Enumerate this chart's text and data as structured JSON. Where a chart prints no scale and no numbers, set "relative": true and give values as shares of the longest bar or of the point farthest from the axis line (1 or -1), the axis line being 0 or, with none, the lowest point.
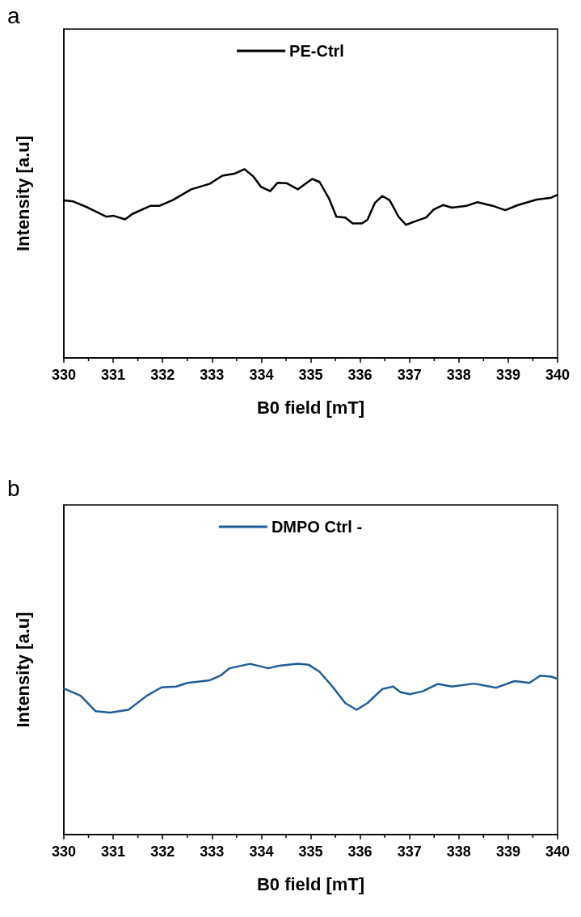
{
  "chart_data": [
    {
      "type": "line",
      "title": "a",
      "xlabel": "B0 field [mT]",
      "ylabel": "Intensity [a.u]",
      "relative": true,
      "xlim": [
        330,
        340
      ],
      "xticks": [
        330,
        331,
        332,
        333,
        334,
        335,
        336,
        337,
        338,
        339,
        340
      ],
      "tick_labels": "x",
      "legend": "top",
      "grid": false,
      "marker": "none",
      "line_style": "solid",
      "x": [
        330.0,
        330.19,
        330.49,
        330.86,
        331.01,
        331.24,
        331.39,
        331.76,
        331.94,
        332.2,
        332.58,
        332.95,
        333.21,
        333.47,
        333.66,
        333.84,
        333.99,
        334.18,
        334.33,
        334.51,
        334.74,
        335.03,
        335.18,
        335.37,
        335.52,
        335.7,
        335.85,
        336.04,
        336.15,
        336.3,
        336.45,
        336.6,
        336.78,
        336.93,
        337.12,
        337.34,
        337.49,
        337.68,
        337.86,
        338.16,
        338.38,
        338.68,
        338.94,
        339.2,
        339.58,
        339.87,
        340.0
      ],
      "series": [
        {
          "name": "PE-Ctrl",
          "color": "#000000",
          "values": [
            0.835,
            0.829,
            0.796,
            0.748,
            0.753,
            0.734,
            0.763,
            0.806,
            0.806,
            0.835,
            0.893,
            0.922,
            0.965,
            0.977,
            1.0,
            0.961,
            0.907,
            0.883,
            0.928,
            0.926,
            0.893,
            0.948,
            0.932,
            0.845,
            0.748,
            0.744,
            0.713,
            0.713,
            0.732,
            0.821,
            0.858,
            0.835,
            0.748,
            0.705,
            0.724,
            0.744,
            0.786,
            0.81,
            0.796,
            0.806,
            0.825,
            0.806,
            0.783,
            0.81,
            0.839,
            0.849,
            0.864
          ]
        }
      ]
    },
    {
      "type": "line",
      "title": "b",
      "xlabel": "B0 field [mT]",
      "ylabel": "Intensity [a.u]",
      "relative": true,
      "xlim": [
        330,
        340
      ],
      "xticks": [
        330,
        331,
        332,
        333,
        334,
        335,
        336,
        337,
        338,
        339,
        340
      ],
      "tick_labels": "x",
      "legend": "top",
      "grid": false,
      "marker": "none",
      "line_style": "solid",
      "x": [
        330.0,
        330.34,
        330.64,
        330.94,
        331.31,
        331.68,
        331.98,
        332.28,
        332.5,
        332.95,
        333.17,
        333.36,
        333.77,
        334.14,
        334.36,
        334.74,
        334.96,
        335.18,
        335.44,
        335.7,
        335.93,
        336.15,
        336.45,
        336.67,
        336.82,
        337.01,
        337.27,
        337.57,
        337.86,
        338.31,
        338.76,
        339.13,
        339.43,
        339.65,
        339.87,
        340.0
      ],
      "series": [
        {
          "name": "DMPO Ctrl -",
          "color": "#1f5c99",
          "values": [
            0.856,
            0.813,
            0.723,
            0.714,
            0.731,
            0.813,
            0.862,
            0.867,
            0.888,
            0.903,
            0.931,
            0.974,
            1.0,
            0.974,
            0.989,
            1.0,
            0.994,
            0.953,
            0.867,
            0.77,
            0.731,
            0.77,
            0.852,
            0.867,
            0.834,
            0.822,
            0.839,
            0.882,
            0.867,
            0.884,
            0.86,
            0.899,
            0.888,
            0.931,
            0.925,
            0.912
          ]
        }
      ]
    }
  ]
}
